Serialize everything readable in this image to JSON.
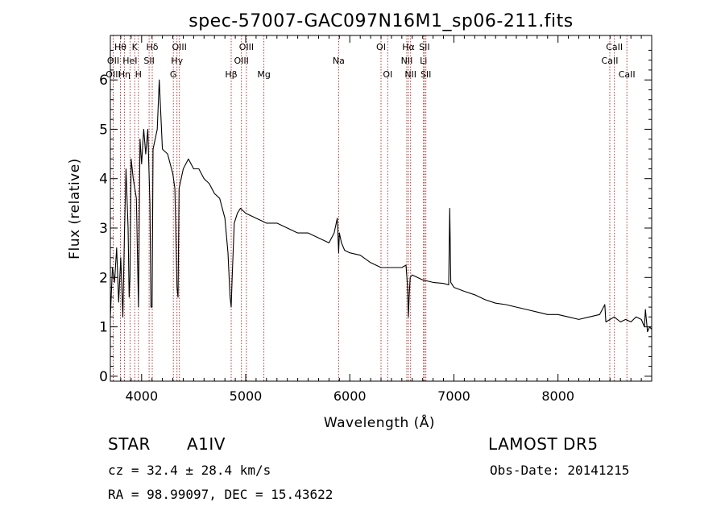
{
  "chart_data": {
    "type": "line",
    "title": "spec-57007-GAC097N16M1_sp06-211.fits",
    "xlabel": "Wavelength (Å)",
    "ylabel": "Flux (relative)",
    "xlim": [
      3700,
      8900
    ],
    "ylim": [
      -0.1,
      6.9
    ],
    "x_ticks": [
      4000,
      5000,
      6000,
      7000,
      8000
    ],
    "y_ticks": [
      0,
      1,
      2,
      3,
      4,
      5,
      6
    ],
    "line_color": "#000000",
    "marker_color": "#b22222",
    "grid": false,
    "series": [
      {
        "x": [
          3700,
          3720,
          3740,
          3760,
          3780,
          3800,
          3820,
          3835,
          3850,
          3870,
          3880,
          3889,
          3900,
          3920,
          3950,
          3970,
          3985,
          4000,
          4020,
          4040,
          4060,
          4080,
          4090,
          4101,
          4110,
          4130,
          4150,
          4170,
          4200,
          4250,
          4300,
          4320,
          4340,
          4350,
          4360,
          4400,
          4450,
          4500,
          4550,
          4600,
          4650,
          4700,
          4750,
          4800,
          4830,
          4850,
          4861,
          4870,
          4890,
          4920,
          4950,
          5000,
          5100,
          5200,
          5300,
          5400,
          5500,
          5600,
          5700,
          5800,
          5850,
          5880,
          5893,
          5900,
          5920,
          5950,
          6000,
          6100,
          6200,
          6300,
          6400,
          6500,
          6540,
          6555,
          6563,
          6570,
          6580,
          6600,
          6650,
          6700,
          6800,
          6900,
          6950,
          6960,
          6970,
          7000,
          7100,
          7200,
          7300,
          7400,
          7500,
          7600,
          7700,
          7800,
          7900,
          8000,
          8100,
          8200,
          8300,
          8400,
          8450,
          8460,
          8500,
          8540,
          8600,
          8650,
          8700,
          8750,
          8800,
          8830,
          8840,
          8860,
          8880,
          8900
        ],
        "y": [
          1.2,
          2.2,
          1.9,
          2.6,
          1.5,
          2.4,
          1.2,
          2.8,
          4.2,
          3.0,
          1.6,
          2.0,
          4.4,
          4.0,
          3.6,
          1.4,
          4.8,
          4.3,
          5.0,
          4.5,
          5.0,
          3.5,
          1.4,
          1.4,
          4.6,
          4.8,
          5.0,
          6.0,
          4.6,
          4.5,
          4.1,
          3.8,
          1.8,
          1.6,
          3.8,
          4.2,
          4.4,
          4.2,
          4.2,
          4.0,
          3.9,
          3.7,
          3.6,
          3.2,
          2.5,
          1.6,
          1.4,
          2.0,
          3.1,
          3.3,
          3.4,
          3.3,
          3.2,
          3.1,
          3.1,
          3.0,
          2.9,
          2.9,
          2.8,
          2.7,
          2.9,
          3.2,
          2.5,
          2.9,
          2.7,
          2.55,
          2.5,
          2.45,
          2.3,
          2.2,
          2.2,
          2.2,
          2.25,
          1.8,
          1.2,
          1.6,
          2.0,
          2.05,
          2.0,
          1.95,
          1.9,
          1.88,
          1.85,
          3.4,
          1.9,
          1.8,
          1.72,
          1.65,
          1.55,
          1.48,
          1.45,
          1.4,
          1.35,
          1.3,
          1.25,
          1.25,
          1.2,
          1.15,
          1.2,
          1.25,
          1.45,
          1.1,
          1.15,
          1.2,
          1.1,
          1.15,
          1.1,
          1.2,
          1.15,
          1.0,
          1.35,
          0.9,
          1.0,
          0.95
        ]
      }
    ],
    "line_markers": [
      {
        "label": "Hθ",
        "wavelength": 3797,
        "row": 0
      },
      {
        "label": "OII",
        "wavelength": 3727,
        "row": 1
      },
      {
        "label": "OIII",
        "wavelength": 3727,
        "row": 2
      },
      {
        "label": "Hη",
        "wavelength": 3835,
        "row": 2
      },
      {
        "label": "HeI",
        "wavelength": 3889,
        "row": 1
      },
      {
        "label": "K",
        "wavelength": 3934,
        "row": 0
      },
      {
        "label": "SII",
        "wavelength": 4072,
        "row": 1
      },
      {
        "label": "H",
        "wavelength": 3969,
        "row": 2
      },
      {
        "label": "Hδ",
        "wavelength": 4102,
        "row": 0
      },
      {
        "label": "OIII",
        "wavelength": 4363,
        "row": 0
      },
      {
        "label": "Hγ",
        "wavelength": 4340,
        "row": 1
      },
      {
        "label": "G",
        "wavelength": 4305,
        "row": 2
      },
      {
        "label": "OIII",
        "wavelength": 5007,
        "row": 0
      },
      {
        "label": "OIII",
        "wavelength": 4959,
        "row": 1
      },
      {
        "label": "Hβ",
        "wavelength": 4861,
        "row": 2
      },
      {
        "label": "Mg",
        "wavelength": 5175,
        "row": 2
      },
      {
        "label": "Na",
        "wavelength": 5893,
        "row": 1
      },
      {
        "label": "OI",
        "wavelength": 6300,
        "row": 0
      },
      {
        "label": "OI",
        "wavelength": 6364,
        "row": 2
      },
      {
        "label": "Hα",
        "wavelength": 6563,
        "row": 0
      },
      {
        "label": "NII",
        "wavelength": 6548,
        "row": 1
      },
      {
        "label": "NII",
        "wavelength": 6584,
        "row": 2
      },
      {
        "label": "SII",
        "wavelength": 6717,
        "row": 0
      },
      {
        "label": "Li",
        "wavelength": 6708,
        "row": 1
      },
      {
        "label": "SII",
        "wavelength": 6731,
        "row": 2
      },
      {
        "label": "CaII",
        "wavelength": 8542,
        "row": 0
      },
      {
        "label": "CaII",
        "wavelength": 8498,
        "row": 1
      },
      {
        "label": "CaII",
        "wavelength": 8662,
        "row": 2
      }
    ],
    "marker_line_wavelengths": [
      3727,
      3797,
      3835,
      3889,
      3934,
      3969,
      4072,
      4102,
      4305,
      4340,
      4363,
      4861,
      4959,
      5007,
      5175,
      5893,
      6300,
      6364,
      6548,
      6563,
      6584,
      6708,
      6717,
      6731,
      8498,
      8542,
      8662
    ]
  },
  "info": {
    "object_class": "STAR",
    "subclass": "A1IV",
    "survey": "LAMOST DR5",
    "redshift": "cz = 32.4 ± 28.4 km/s",
    "obs_date": "Obs-Date: 20141215",
    "coords": "RA =  98.99097, DEC =  15.43622"
  }
}
